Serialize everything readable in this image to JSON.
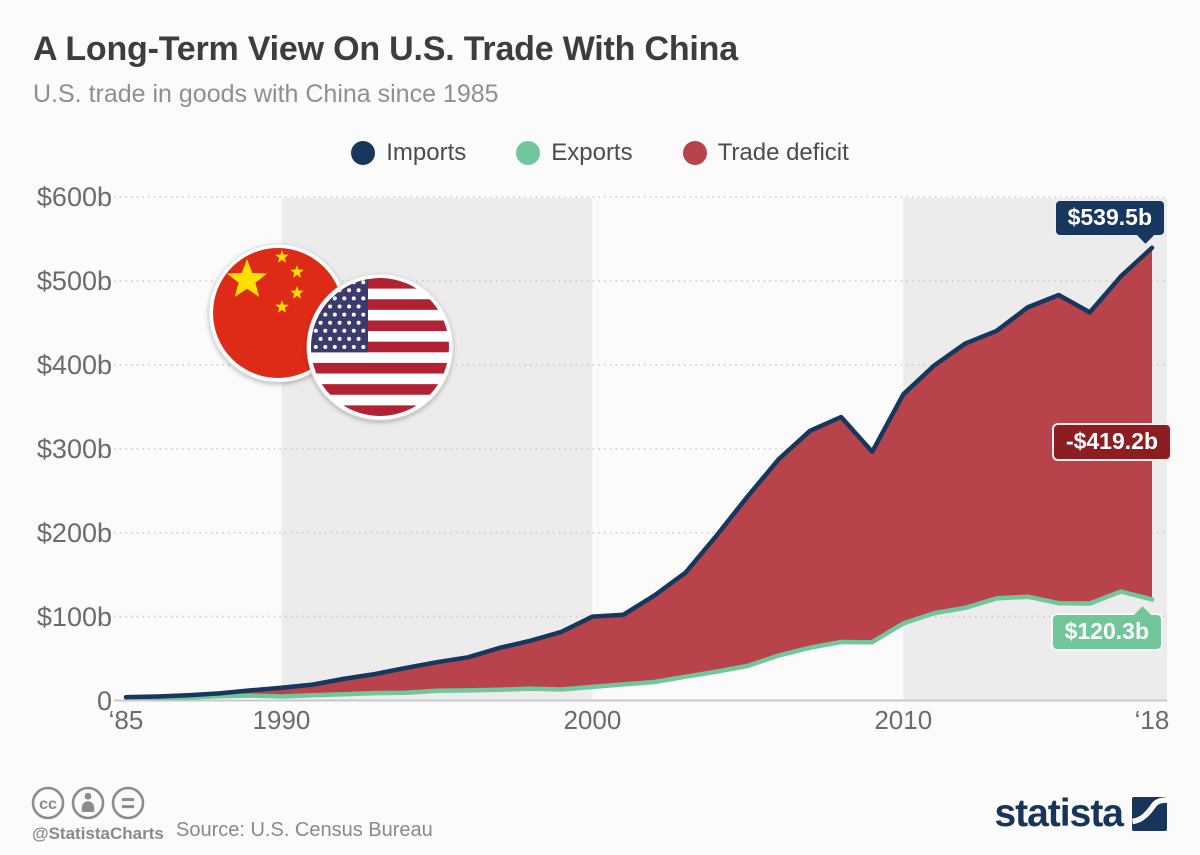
{
  "header": {
    "title": "A Long-Term View On U.S. Trade With China",
    "subtitle": "U.S. trade in goods with China since 1985"
  },
  "legend": [
    {
      "label": "Imports",
      "color": "#17375e"
    },
    {
      "label": "Exports",
      "color": "#6fc79b"
    },
    {
      "label": "Trade deficit",
      "color": "#b8434a"
    }
  ],
  "chart_data": {
    "type": "area",
    "title": "U.S. trade in goods with China since 1985",
    "x": [
      1985,
      1986,
      1987,
      1988,
      1989,
      1990,
      1991,
      1992,
      1993,
      1994,
      1995,
      1996,
      1997,
      1998,
      1999,
      2000,
      2001,
      2002,
      2003,
      2004,
      2005,
      2006,
      2007,
      2008,
      2009,
      2010,
      2011,
      2012,
      2013,
      2014,
      2015,
      2016,
      2017,
      2018
    ],
    "series": [
      {
        "name": "Imports",
        "color": "#17375e",
        "values": [
          3.9,
          4.8,
          6.3,
          8.5,
          12.0,
          15.2,
          19.0,
          25.7,
          31.5,
          38.8,
          45.6,
          51.5,
          62.6,
          71.2,
          81.8,
          100.0,
          102.3,
          125.2,
          152.4,
          196.7,
          243.5,
          287.8,
          321.4,
          337.8,
          296.4,
          364.9,
          399.4,
          425.6,
          440.4,
          468.5,
          483.2,
          462.5,
          505.5,
          539.5
        ]
      },
      {
        "name": "Exports",
        "color": "#6fc79b",
        "values": [
          3.9,
          3.1,
          3.5,
          5.0,
          5.8,
          4.8,
          6.3,
          7.4,
          8.8,
          9.3,
          11.7,
          12.0,
          12.8,
          14.2,
          13.1,
          16.2,
          19.2,
          22.1,
          28.4,
          34.4,
          41.2,
          53.7,
          62.9,
          69.7,
          69.5,
          91.9,
          104.1,
          110.5,
          121.7,
          123.7,
          115.9,
          115.6,
          129.9,
          120.3
        ]
      },
      {
        "name": "Trade deficit",
        "color": "#b8434a",
        "derived": "area between Exports and Imports"
      }
    ],
    "ylim": [
      0,
      600
    ],
    "y_ticks": [
      {
        "value": 600,
        "label": "$600b"
      },
      {
        "value": 500,
        "label": "$500b"
      },
      {
        "value": 400,
        "label": "$400b"
      },
      {
        "value": 300,
        "label": "$300b"
      },
      {
        "value": 200,
        "label": "$200b"
      },
      {
        "value": 100,
        "label": "$100b"
      },
      {
        "value": 0,
        "label": "0"
      }
    ],
    "x_ticks": [
      {
        "value": 1985,
        "label": "‘85"
      },
      {
        "value": 1990,
        "label": "1990"
      },
      {
        "value": 2000,
        "label": "2000"
      },
      {
        "value": 2010,
        "label": "2010"
      },
      {
        "value": 2018,
        "label": "‘18"
      }
    ],
    "bands": [
      {
        "from": 1990,
        "to": 2000
      },
      {
        "from": 2010,
        "to": "end"
      }
    ],
    "grid": "dotted horizontal",
    "legend_position": "top center",
    "annotations": [
      {
        "label": "$539.5b",
        "value": 539.5,
        "series": "Imports",
        "color": "#17375e",
        "pointer": "down"
      },
      {
        "label": "-$419.2b",
        "value": -419.2,
        "series": "Trade deficit",
        "color": "#8c1d21",
        "pointer": "none"
      },
      {
        "label": "$120.3b",
        "value": 120.3,
        "series": "Exports",
        "color": "#72c69a",
        "pointer": "up"
      }
    ]
  },
  "icons": {
    "flags": [
      "china-flag",
      "us-flag"
    ],
    "license": [
      "cc",
      "attribution",
      "no-derivatives"
    ]
  },
  "footer": {
    "handle": "@StatistaCharts",
    "source": "Source: U.S. Census Bureau",
    "brand": "statista"
  }
}
